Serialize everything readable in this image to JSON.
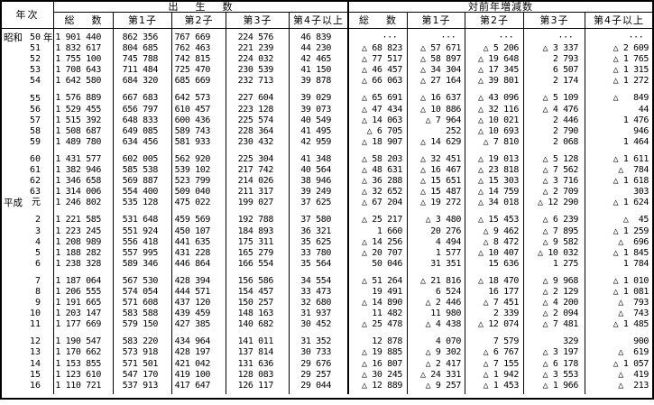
{
  "colors": {
    "background": "#ffffff",
    "text": "#000000",
    "border": "#000000"
  },
  "table": {
    "header": {
      "year_col": "年次",
      "births_group": "出    生    数",
      "change_group": "対前年増減数",
      "sub": [
        "総    数",
        "第1子",
        "第2子",
        "第3子",
        "第4子以上",
        "総    数",
        "第1子",
        "第2子",
        "第3子",
        "第4子以上"
      ],
      "negative_marker": "△",
      "missing_marker": "···"
    },
    "groups": [
      {
        "rows": [
          {
            "era": "昭和",
            "year": "50",
            "suffix": "年",
            "cells": [
              "1 901 440",
              "862 356",
              "767 669",
              "224 576",
              "46 839",
              "··· ",
              "··· ",
              "··· ",
              "··· ",
              "··· "
            ]
          },
          {
            "era": "",
            "year": "51",
            "suffix": "",
            "cells": [
              "1 832 617",
              "804 685",
              "762 463",
              "221 239",
              "44 230",
              "△ 68 823",
              "△ 57 671",
              "△ 5 206",
              "△ 3 337",
              "△ 2 609"
            ]
          },
          {
            "era": "",
            "year": "52",
            "suffix": "",
            "cells": [
              "1 755 100",
              "745 788",
              "742 815",
              "224 032",
              "42 465",
              "△ 77 517",
              "△ 58 897",
              "△ 19 648",
              "2 793",
              "△ 1 765"
            ]
          },
          {
            "era": "",
            "year": "53",
            "suffix": "",
            "cells": [
              "1 708 643",
              "711 484",
              "725 470",
              "230 539",
              "41 150",
              "△ 46 457",
              "△ 34 304",
              "△ 17 345",
              "6 507",
              "△ 1 315"
            ]
          },
          {
            "era": "",
            "year": "54",
            "suffix": "",
            "cells": [
              "1 642 580",
              "684 320",
              "685 669",
              "232 713",
              "39 878",
              "△ 66 063",
              "△ 27 164",
              "△ 39 801",
              "2 174",
              "△ 1 272"
            ]
          }
        ]
      },
      {
        "rows": [
          {
            "era": "",
            "year": "55",
            "suffix": "",
            "cells": [
              "1 576 889",
              "667 683",
              "642 573",
              "227 604",
              "39 029",
              "△ 65 691",
              "△ 16 637",
              "△ 43 096",
              "△ 5 109",
              "△   849"
            ]
          },
          {
            "era": "",
            "year": "56",
            "suffix": "",
            "cells": [
              "1 529 455",
              "656 797",
              "610 457",
              "223 128",
              "39 073",
              "△ 47 434",
              "△ 10 886",
              "△ 32 116",
              "△ 4 476",
              "44"
            ]
          },
          {
            "era": "",
            "year": "57",
            "suffix": "",
            "cells": [
              "1 515 392",
              "648 833",
              "600 436",
              "225 574",
              "40 549",
              "△ 14 063",
              "△ 7 964",
              "△ 10 021",
              "2 446",
              "1 476"
            ]
          },
          {
            "era": "",
            "year": "58",
            "suffix": "",
            "cells": [
              "1 508 687",
              "649 085",
              "589 743",
              "228 364",
              "41 495",
              "△ 6 705",
              "252",
              "△ 10 693",
              "2 790",
              "946"
            ]
          },
          {
            "era": "",
            "year": "59",
            "suffix": "",
            "cells": [
              "1 489 780",
              "634 456",
              "581 933",
              "230 432",
              "42 959",
              "△ 18 907",
              "△ 14 629",
              "△ 7 810",
              "2 068",
              "1 464"
            ]
          }
        ]
      },
      {
        "rows": [
          {
            "era": "",
            "year": "60",
            "suffix": "",
            "cells": [
              "1 431 577",
              "602 005",
              "562 920",
              "225 304",
              "41 348",
              "△ 58 203",
              "△ 32 451",
              "△ 19 013",
              "△ 5 128",
              "△ 1 611"
            ]
          },
          {
            "era": "",
            "year": "61",
            "suffix": "",
            "cells": [
              "1 382 946",
              "585 538",
              "539 102",
              "217 742",
              "40 564",
              "△ 48 631",
              "△ 16 467",
              "△ 23 818",
              "△ 7 562",
              "△  784"
            ]
          },
          {
            "era": "",
            "year": "62",
            "suffix": "",
            "cells": [
              "1 346 658",
              "569 887",
              "523 799",
              "214 026",
              "38 946",
              "△ 36 288",
              "△ 15 651",
              "△ 15 303",
              "△ 3 716",
              "△ 1 618"
            ]
          },
          {
            "era": "",
            "year": "63",
            "suffix": "",
            "cells": [
              "1 314 006",
              "554 400",
              "509 040",
              "211 317",
              "39 249",
              "△ 32 652",
              "△ 15 487",
              "△ 14 759",
              "△ 2 709",
              "303"
            ]
          },
          {
            "era": "平成",
            "year": "元",
            "suffix": "",
            "cells": [
              "1 246 802",
              "535 128",
              "475 022",
              "199 027",
              "37 625",
              "△ 67 204",
              "△ 19 272",
              "△ 34 018",
              "△ 12 290",
              "△ 1 624"
            ]
          }
        ]
      },
      {
        "rows": [
          {
            "era": "",
            "year": "2",
            "suffix": "",
            "cells": [
              "1 221 585",
              "531 648",
              "459 569",
              "192 788",
              "37 580",
              "△ 25 217",
              "△ 3 480",
              "△ 15 453",
              "△ 6 239",
              "△  45"
            ]
          },
          {
            "era": "",
            "year": "3",
            "suffix": "",
            "cells": [
              "1 223 245",
              "551 924",
              "450 107",
              "184 893",
              "36 321",
              "1 660",
              "20 276",
              "△ 9 462",
              "△ 7 895",
              "△ 1 259"
            ]
          },
          {
            "era": "",
            "year": "4",
            "suffix": "",
            "cells": [
              "1 208 989",
              "556 418",
              "441 635",
              "175 311",
              "35 625",
              "△ 14 256",
              "4 494",
              "△ 8 472",
              "△ 9 582",
              "△  696"
            ]
          },
          {
            "era": "",
            "year": "5",
            "suffix": "",
            "cells": [
              "1 188 282",
              "557 995",
              "431 228",
              "165 279",
              "33 780",
              "△ 20 707",
              "1 577",
              "△ 10 407",
              "△ 10 032",
              "△ 1 845"
            ]
          },
          {
            "era": "",
            "year": "6",
            "suffix": "",
            "cells": [
              "1 238 328",
              "589 346",
              "446 864",
              "166 554",
              "35 564",
              "50 046",
              "31 351",
              "15 636",
              "1 275",
              "1 784"
            ]
          }
        ]
      },
      {
        "rows": [
          {
            "era": "",
            "year": "7",
            "suffix": "",
            "cells": [
              "1 187 064",
              "567 530",
              "428 394",
              "156 586",
              "34 554",
              "△ 51 264",
              "△ 21 816",
              "△ 18 470",
              "△ 9 968",
              "△ 1 010"
            ]
          },
          {
            "era": "",
            "year": "8",
            "suffix": "",
            "cells": [
              "1 206 555",
              "574 054",
              "444 571",
              "154 457",
              "33 473",
              "19 491",
              "6 524",
              "16 177",
              "△ 2 129",
              "△ 1 081"
            ]
          },
          {
            "era": "",
            "year": "9",
            "suffix": "",
            "cells": [
              "1 191 665",
              "571 608",
              "437 120",
              "150 257",
              "32 680",
              "△ 14 890",
              "△ 2 446",
              "△ 7 451",
              "△ 4 200",
              "△  793"
            ]
          },
          {
            "era": "",
            "year": "10",
            "suffix": "",
            "cells": [
              "1 203 147",
              "583 588",
              "439 459",
              "148 163",
              "31 937",
              "11 482",
              "11 980",
              "2 339",
              "△ 2 094",
              "△  743"
            ]
          },
          {
            "era": "",
            "year": "11",
            "suffix": "",
            "cells": [
              "1 177 669",
              "579 150",
              "427 385",
              "140 682",
              "30 452",
              "△ 25 478",
              "△ 4 438",
              "△ 12 074",
              "△ 7 481",
              "△ 1 485"
            ]
          }
        ]
      },
      {
        "rows": [
          {
            "era": "",
            "year": "12",
            "suffix": "",
            "cells": [
              "1 190 547",
              "583 220",
              "434 964",
              "141 011",
              "31 352",
              "12 878",
              "4 070",
              "7 579",
              "329",
              "900"
            ]
          },
          {
            "era": "",
            "year": "13",
            "suffix": "",
            "cells": [
              "1 170 662",
              "573 918",
              "428 197",
              "137 814",
              "30 733",
              "△ 19 885",
              "△ 9 302",
              "△ 6 767",
              "△ 3 197",
              "△  619"
            ]
          },
          {
            "era": "",
            "year": "14",
            "suffix": "",
            "cells": [
              "1 153 855",
              "571 501",
              "421 042",
              "131 636",
              "29 676",
              "△ 16 807",
              "△ 2 417",
              "△ 7 155",
              "△ 6 178",
              "△ 1 057"
            ]
          },
          {
            "era": "",
            "year": "15",
            "suffix": "",
            "cells": [
              "1 123 610",
              "547 170",
              "419 100",
              "128 083",
              "29 257",
              "△ 30 245",
              "△ 24 331",
              "△ 1 942",
              "△ 3 553",
              "△  419"
            ]
          },
          {
            "era": "",
            "year": "16",
            "suffix": "",
            "cells": [
              "1 110 721",
              "537 913",
              "417 647",
              "126 117",
              "29 044",
              "△ 12 889",
              "△ 9 257",
              "△ 1 453",
              "△ 1 966",
              "△  213"
            ]
          }
        ]
      }
    ]
  }
}
